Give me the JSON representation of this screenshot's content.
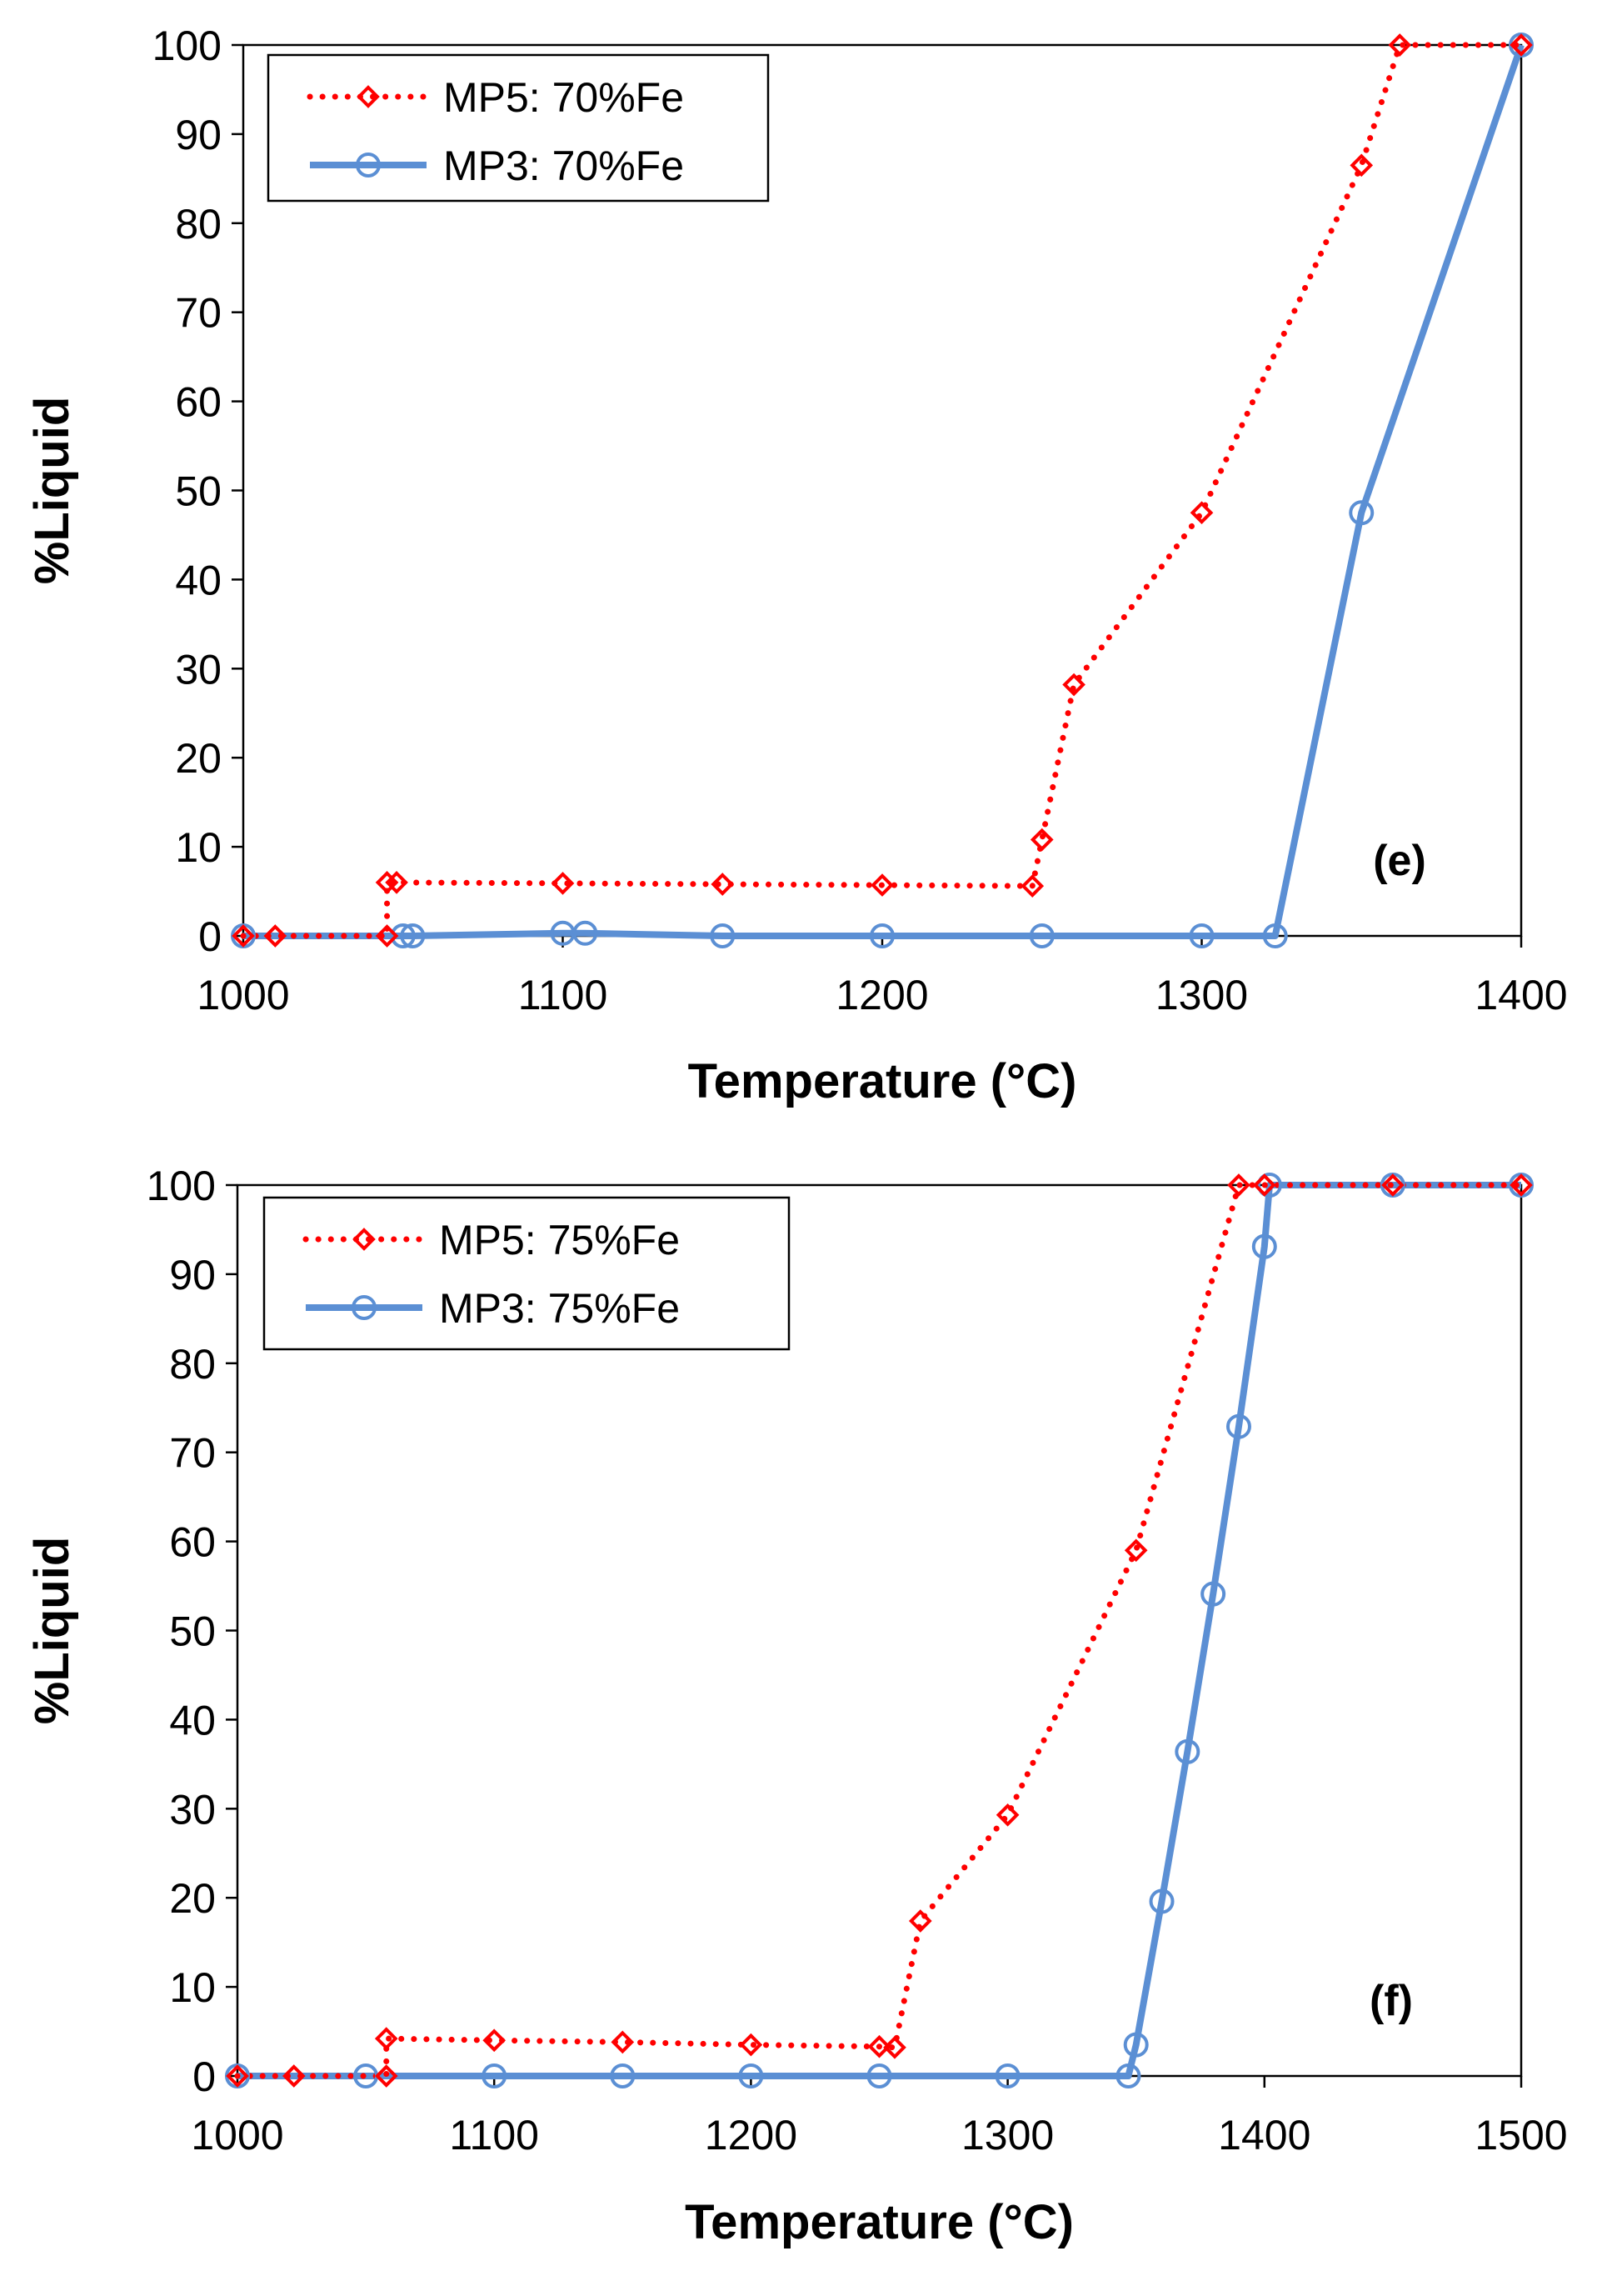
{
  "chart_data": [
    {
      "type": "line",
      "panel_label": "(e)",
      "xlabel": "Temperature (°C)",
      "ylabel": "%Liquid",
      "xlim": [
        1000,
        1400
      ],
      "ylim": [
        0,
        100
      ],
      "x_ticks": [
        1000,
        1100,
        1200,
        1300,
        1400
      ],
      "y_ticks": [
        0,
        10,
        20,
        30,
        40,
        50,
        60,
        70,
        80,
        90,
        100
      ],
      "legend_position": "top-left",
      "grid": false,
      "series": [
        {
          "name": "MP5: 70%Fe",
          "color": "#ff0000",
          "line_style": "dotted",
          "marker": "diamond",
          "x": [
            1000,
            1010,
            1045,
            1045,
            1048,
            1100,
            1150,
            1200,
            1247,
            1250,
            1260,
            1300,
            1350,
            1362,
            1400
          ],
          "y": [
            0,
            0,
            0,
            6,
            6,
            5.9,
            5.8,
            5.7,
            5.6,
            10.8,
            28.2,
            47.5,
            86.5,
            100,
            100
          ]
        },
        {
          "name": "MP3: 70%Fe",
          "color": "#5b8fd4",
          "line_style": "solid",
          "marker": "circle",
          "x": [
            1000,
            1050,
            1053,
            1100,
            1107,
            1150,
            1200,
            1250,
            1300,
            1323,
            1350,
            1400
          ],
          "y": [
            0,
            0,
            0,
            0.3,
            0.3,
            0,
            0,
            0,
            0,
            0,
            47.5,
            100
          ]
        }
      ]
    },
    {
      "type": "line",
      "panel_label": "(f)",
      "xlabel": "Temperature (°C)",
      "ylabel": "%Liquid",
      "xlim": [
        1000,
        1500
      ],
      "ylim": [
        0,
        100
      ],
      "x_ticks": [
        1000,
        1100,
        1200,
        1300,
        1400,
        1500
      ],
      "y_ticks": [
        0,
        10,
        20,
        30,
        40,
        50,
        60,
        70,
        80,
        90,
        100
      ],
      "legend_position": "top-left",
      "grid": false,
      "series": [
        {
          "name": "MP5: 75%Fe",
          "color": "#ff0000",
          "line_style": "dotted",
          "marker": "diamond",
          "x": [
            1000,
            1022,
            1058,
            1058,
            1100,
            1150,
            1200,
            1250,
            1256,
            1266,
            1300,
            1350,
            1390,
            1400,
            1450,
            1500
          ],
          "y": [
            0,
            0,
            0,
            4.2,
            4,
            3.8,
            3.5,
            3.3,
            3.2,
            17.4,
            29.3,
            59,
            100,
            100,
            100,
            100
          ]
        },
        {
          "name": "MP3: 75%Fe",
          "color": "#5b8fd4",
          "line_style": "solid",
          "marker": "circle",
          "x": [
            1000,
            1050,
            1100,
            1150,
            1200,
            1250,
            1300,
            1347,
            1350,
            1360,
            1370,
            1380,
            1390,
            1400,
            1402,
            1450,
            1500
          ],
          "y": [
            0,
            0,
            0,
            0,
            0,
            0,
            0,
            0,
            3.5,
            19.6,
            36.4,
            54.1,
            72.9,
            93.1,
            100,
            100,
            100
          ]
        }
      ]
    }
  ]
}
